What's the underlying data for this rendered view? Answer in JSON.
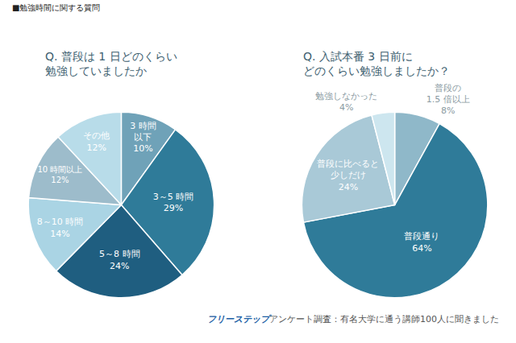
{
  "header": "■勉強時間に関する質問",
  "footer": [
    "フリーステップ",
    "アンケート調査：有名大学に通う講師100人に聞きました"
  ],
  "chart_data": [
    {
      "type": "pie",
      "title": "Q. 普段は 1 日どのくらい\n勉強していましたか",
      "categories": [
        "3 時間\n以下",
        "3～5 時間",
        "5～8 時間",
        "8～10 時間",
        "10 時間以上",
        "その他"
      ],
      "values": [
        10,
        29,
        24,
        14,
        12,
        12
      ],
      "value_labels": [
        "10%",
        "29%",
        "24%",
        "14%",
        "12%",
        "12%"
      ],
      "colors": [
        "#6fa2b8",
        "#2f7b99",
        "#1f5e80",
        "#aad4e4",
        "#9dbccb",
        "#b8dce9"
      ],
      "data_labels": true
    },
    {
      "type": "pie",
      "title": "Q. 入試本番 3 日前に\nどのくらい勉強しましたか？",
      "categories": [
        "普段の\n1.5 倍以上",
        "普段通り",
        "普段に比べると\n少しだけ",
        "勉強しなかった"
      ],
      "values": [
        8,
        64,
        24,
        4
      ],
      "value_labels": [
        "8%",
        "64%",
        "24%",
        "4%"
      ],
      "colors": [
        "#8fb8c9",
        "#2f7b99",
        "#a9c9d7",
        "#cde6ef"
      ],
      "data_labels": true
    }
  ]
}
